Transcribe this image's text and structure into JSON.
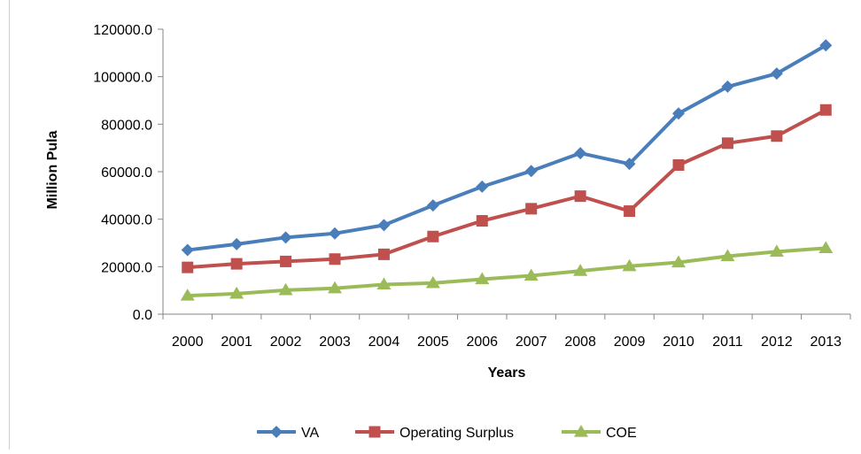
{
  "chart_data": {
    "type": "line",
    "title": "",
    "xlabel": "Years",
    "ylabel": "Million Pula",
    "categories": [
      "2000",
      "2001",
      "2002",
      "2003",
      "2004",
      "2005",
      "2006",
      "2007",
      "2008",
      "2009",
      "2010",
      "2011",
      "2012",
      "2013"
    ],
    "ylim": [
      0,
      120000
    ],
    "yticks": [
      "0.0",
      "20000.0",
      "40000.0",
      "60000.0",
      "80000.0",
      "100000.0",
      "120000.0"
    ],
    "ytick_values": [
      0,
      20000,
      40000,
      60000,
      80000,
      100000,
      120000
    ],
    "grid": false,
    "legend_position": "bottom",
    "series": [
      {
        "name": "VA",
        "color": "#4A7EBB",
        "marker": "diamond",
        "values": [
          27000,
          29500,
          32300,
          34000,
          37500,
          45800,
          53700,
          60300,
          67800,
          63300,
          84500,
          95800,
          101300,
          113200
        ]
      },
      {
        "name": "Operating Surplus",
        "color": "#C0504D",
        "marker": "square",
        "values": [
          19700,
          21200,
          22200,
          23200,
          25200,
          32700,
          39300,
          44400,
          49700,
          43400,
          62800,
          72000,
          75000,
          86000
        ]
      },
      {
        "name": "COE",
        "color": "#9BBB59",
        "marker": "triangle",
        "values": [
          7800,
          8600,
          10100,
          10900,
          12500,
          13100,
          14700,
          16200,
          18200,
          20200,
          21800,
          24400,
          26300,
          27800
        ]
      }
    ]
  }
}
